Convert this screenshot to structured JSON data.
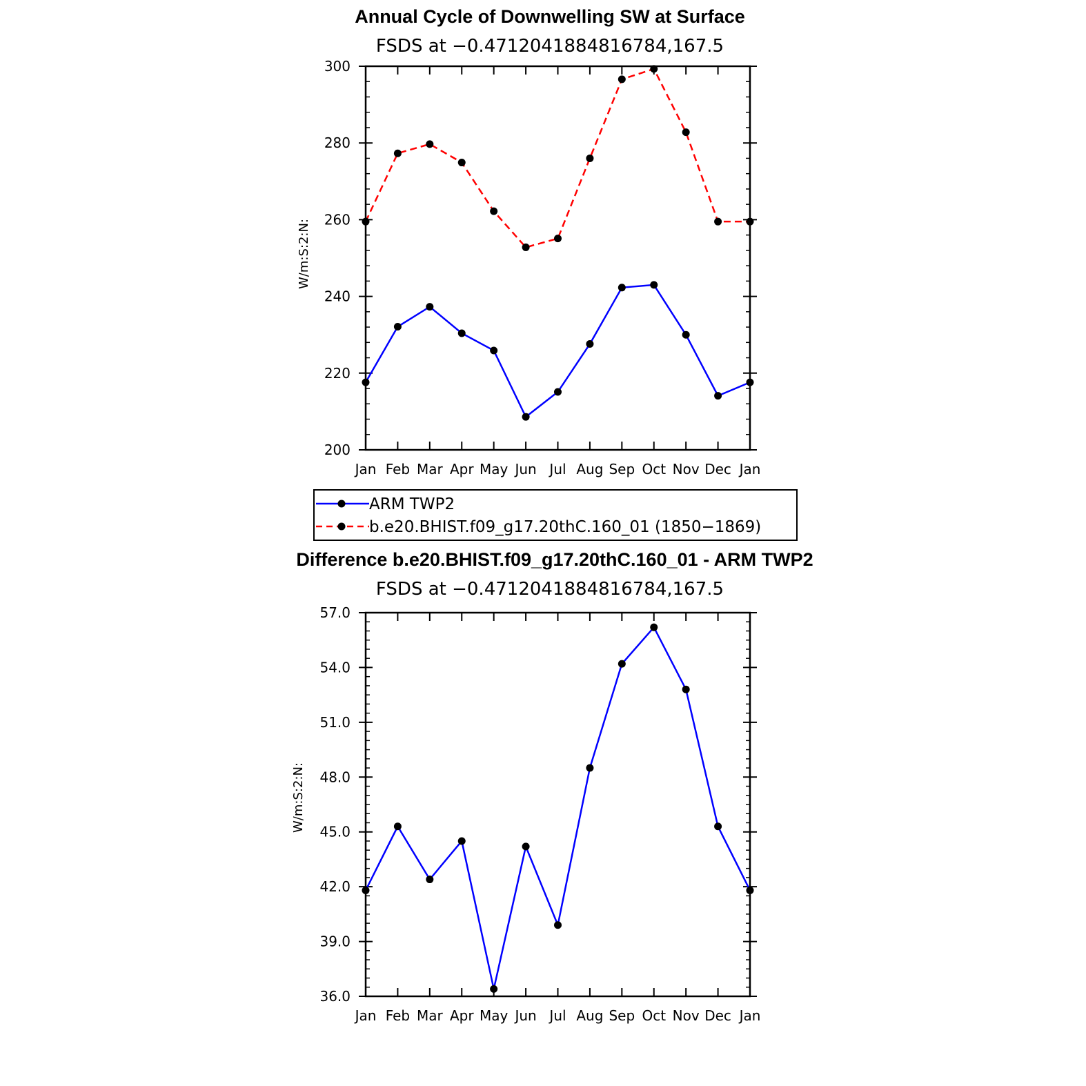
{
  "chart_data": [
    {
      "type": "line",
      "title": "Annual Cycle of Downwelling SW at Surface",
      "subtitle": "FSDS at −0.4712041884816784,167.5",
      "ylabel": "W/m:S:2:N:",
      "xlabel": "",
      "categories": [
        "Jan",
        "Feb",
        "Mar",
        "Apr",
        "May",
        "Jun",
        "Jul",
        "Aug",
        "Sep",
        "Oct",
        "Nov",
        "Dec",
        "Jan"
      ],
      "ylim": [
        200,
        300
      ],
      "yticks": [
        "200",
        "220",
        "240",
        "260",
        "280",
        "300"
      ],
      "series": [
        {
          "name": "ARM TWP2",
          "color": "#0000ff",
          "dash": "solid",
          "values": [
            217.6,
            232.1,
            237.3,
            230.4,
            225.9,
            208.6,
            215.1,
            227.6,
            242.3,
            243.0,
            230.0,
            214.1,
            217.6
          ]
        },
        {
          "name": "b.e20.BHIST.f09_g17.20thC.160_01 (1850−1869)",
          "color": "#ff0000",
          "dash": "dashed",
          "values": [
            259.5,
            277.3,
            279.7,
            274.9,
            262.2,
            252.8,
            255.1,
            276.0,
            296.6,
            299.3,
            282.8,
            259.5,
            259.5
          ]
        }
      ]
    },
    {
      "type": "line",
      "title": "Difference b.e20.BHIST.f09_g17.20thC.160_01 - ARM TWP2",
      "subtitle": "FSDS at −0.4712041884816784,167.5",
      "ylabel": "W/m:S:2:N:",
      "xlabel": "",
      "categories": [
        "Jan",
        "Feb",
        "Mar",
        "Apr",
        "May",
        "Jun",
        "Jul",
        "Aug",
        "Sep",
        "Oct",
        "Nov",
        "Dec",
        "Jan"
      ],
      "ylim": [
        36.0,
        57.0
      ],
      "yticks": [
        "36.0",
        "39.0",
        "42.0",
        "45.0",
        "48.0",
        "51.0",
        "54.0",
        "57.0"
      ],
      "series": [
        {
          "color": "#0000ff",
          "dash": "solid",
          "values": [
            41.8,
            45.3,
            42.4,
            44.5,
            36.4,
            44.2,
            39.9,
            48.5,
            54.2,
            56.2,
            52.8,
            45.3,
            41.8
          ]
        }
      ]
    }
  ]
}
